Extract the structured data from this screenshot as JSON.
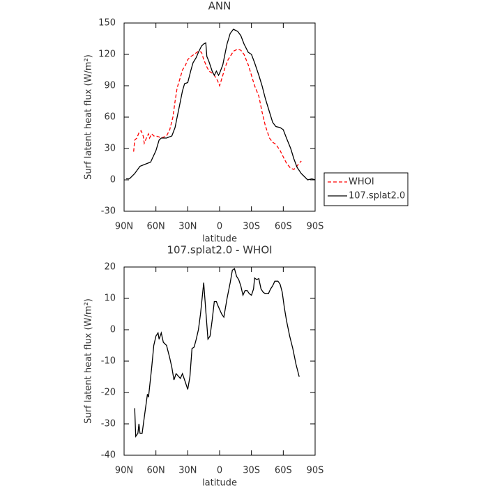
{
  "chart_data": [
    {
      "type": "line",
      "title": "ANN",
      "xlabel": "latitude",
      "ylabel": "Surf latent heat flux (W/m²)",
      "xlim": [
        90,
        -90
      ],
      "ylim": [
        -30,
        150
      ],
      "xticks": [
        {
          "value": 90,
          "label": "90N"
        },
        {
          "value": 60,
          "label": "60N"
        },
        {
          "value": 30,
          "label": "30N"
        },
        0,
        {
          "value": -30,
          "label": "30S"
        },
        {
          "value": -60,
          "label": "60S"
        },
        {
          "value": -90,
          "label": "90S"
        }
      ],
      "yticks": [
        -30,
        0,
        30,
        60,
        90,
        120,
        150
      ],
      "legend": "right",
      "series": [
        {
          "name": "WHOI",
          "color": "#ff0000",
          "linestyle": "dashed",
          "x": [
            81,
            80,
            78,
            76,
            74,
            72,
            71,
            69,
            67,
            66,
            64,
            62,
            60,
            57,
            55,
            50,
            47,
            44,
            42,
            40,
            37,
            35,
            32,
            30,
            27,
            24,
            20,
            17,
            15,
            12,
            10,
            7,
            5,
            2,
            0,
            -3,
            -5,
            -8,
            -10,
            -13,
            -17,
            -20,
            -23,
            -27,
            -30,
            -33,
            -37,
            -40,
            -43,
            -47,
            -50,
            -53,
            -57,
            -60,
            -63,
            -67,
            -70,
            -72,
            -75,
            -77
          ],
          "values": [
            27,
            38,
            40,
            45,
            47,
            42,
            35,
            40,
            44,
            40,
            44,
            42,
            42,
            41,
            40,
            42,
            48,
            60,
            75,
            88,
            98,
            105,
            110,
            115,
            118,
            120,
            123,
            122,
            115,
            108,
            104,
            102,
            100,
            95,
            90,
            100,
            107,
            115,
            118,
            123,
            125,
            124,
            120,
            110,
            100,
            90,
            80,
            65,
            52,
            40,
            36,
            34,
            28,
            22,
            16,
            11,
            10,
            12,
            16,
            18
          ]
        },
        {
          "name": "107.splat2.0",
          "color": "#000000",
          "linestyle": "solid",
          "x": [
            88,
            85,
            80,
            75,
            70,
            65,
            60,
            57,
            55,
            50,
            45,
            42,
            40,
            38,
            35,
            33,
            30,
            27,
            25,
            22,
            20,
            17,
            15,
            13,
            12,
            10,
            7,
            5,
            3,
            1,
            0,
            -3,
            -5,
            -7,
            -10,
            -13,
            -17,
            -20,
            -23,
            -27,
            -30,
            -33,
            -37,
            -40,
            -43,
            -47,
            -50,
            -53,
            -57,
            -60,
            -63,
            -67,
            -70,
            -73,
            -77,
            -80,
            -83,
            -87,
            -90
          ],
          "values": [
            1,
            1,
            6,
            13,
            15,
            17,
            28,
            38,
            40,
            40,
            42,
            50,
            60,
            70,
            85,
            92,
            93,
            105,
            112,
            117,
            122,
            128,
            130,
            131,
            118,
            113,
            104,
            100,
            104,
            100,
            102,
            110,
            120,
            130,
            140,
            144,
            142,
            138,
            130,
            122,
            120,
            112,
            100,
            90,
            78,
            65,
            55,
            51,
            50,
            48,
            40,
            30,
            20,
            12,
            6,
            3,
            0,
            1,
            0
          ]
        }
      ]
    },
    {
      "type": "line",
      "title": "107.splat2.0 - WHOI",
      "xlabel": "latitude",
      "ylabel": "Surf latent heat flux (W/m²)",
      "xlim": [
        90,
        -90
      ],
      "ylim": [
        -40,
        20
      ],
      "xticks": [
        {
          "value": 90,
          "label": "90N"
        },
        {
          "value": 60,
          "label": "60N"
        },
        {
          "value": 30,
          "label": "30N"
        },
        0,
        {
          "value": -30,
          "label": "30S"
        },
        {
          "value": -60,
          "label": "60S"
        },
        {
          "value": -90,
          "label": "90S"
        }
      ],
      "yticks": [
        -40,
        -30,
        -20,
        -10,
        0,
        10,
        20
      ],
      "series": [
        {
          "color": "#000000",
          "linestyle": "solid",
          "x": [
            80,
            79,
            77,
            76,
            75,
            73,
            71,
            68,
            67,
            64,
            62,
            60,
            58,
            57,
            55,
            53,
            50,
            47,
            45,
            43,
            41,
            37,
            35,
            33,
            30,
            28,
            26,
            24,
            22,
            20,
            18,
            15,
            13,
            11,
            9,
            7,
            5,
            3,
            2,
            -2,
            -4,
            -7,
            -10,
            -12,
            -14,
            -16,
            -18,
            -20,
            -22,
            -24,
            -26,
            -28,
            -30,
            -32,
            -33,
            -35,
            -37,
            -39,
            -41,
            -43,
            -46,
            -48,
            -50,
            -52,
            -55,
            -57,
            -59,
            -61,
            -63,
            -66,
            -69,
            -72,
            -75
          ],
          "values": [
            -25,
            -34,
            -33,
            -30,
            -33,
            -33,
            -28,
            -20.5,
            -21.5,
            -12,
            -5,
            -2,
            -1,
            -3,
            -1,
            -4,
            -5,
            -9,
            -12,
            -16,
            -14,
            -15.5,
            -14,
            -16,
            -19,
            -15,
            -6,
            -5.5,
            -3,
            0,
            5,
            15,
            6,
            -3,
            -2,
            3,
            9,
            9,
            8,
            5,
            4,
            10,
            15,
            19,
            19.5,
            17,
            16,
            14,
            11,
            12.5,
            12.5,
            11.5,
            11,
            13,
            16.5,
            16,
            16.3,
            13,
            12,
            11.5,
            11.5,
            13,
            14,
            15.5,
            15.5,
            14.5,
            12,
            7,
            3,
            -2,
            -6,
            -11,
            -15
          ]
        }
      ]
    }
  ]
}
